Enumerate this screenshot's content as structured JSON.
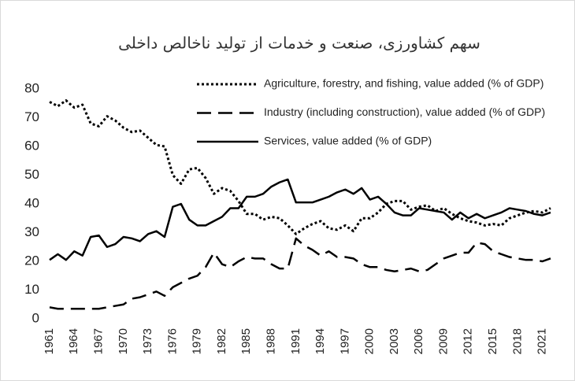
{
  "chart_data": {
    "type": "line",
    "title": "سهم کشاورزی، صنعت و خدمات از تولید ناخالص داخلی",
    "x": [
      1961,
      1962,
      1963,
      1964,
      1965,
      1966,
      1967,
      1968,
      1969,
      1970,
      1971,
      1972,
      1973,
      1974,
      1975,
      1976,
      1977,
      1978,
      1979,
      1980,
      1981,
      1982,
      1983,
      1984,
      1985,
      1986,
      1987,
      1988,
      1989,
      1990,
      1991,
      1992,
      1993,
      1994,
      1995,
      1996,
      1997,
      1998,
      1999,
      2000,
      2001,
      2002,
      2003,
      2004,
      2005,
      2006,
      2007,
      2008,
      2009,
      2010,
      2011,
      2012,
      2013,
      2014,
      2015,
      2016,
      2017,
      2018,
      2019,
      2020,
      2021,
      2022
    ],
    "xlim": [
      1961,
      2022
    ],
    "xticks": [
      1961,
      1964,
      1967,
      1970,
      1973,
      1976,
      1979,
      1982,
      1985,
      1988,
      1991,
      1994,
      1997,
      2000,
      2003,
      2006,
      2009,
      2012,
      2015,
      2018,
      2021
    ],
    "ylim": [
      0,
      80
    ],
    "yticks": [
      0,
      10,
      20,
      30,
      40,
      50,
      60,
      70,
      80
    ],
    "grid": false,
    "legend": "top-right",
    "series": [
      {
        "name": "Agriculture, forestry, and fishing, value added (% of GDP)",
        "color": "#000000",
        "style": "dotted",
        "values": [
          75.5,
          74,
          76,
          73.5,
          74.5,
          68,
          67,
          70.5,
          69,
          66.5,
          65,
          65.5,
          63,
          60.5,
          60,
          50,
          47,
          52,
          52.5,
          49,
          43.5,
          45.5,
          44.5,
          41,
          36.5,
          36.5,
          34.5,
          35.5,
          35,
          32.5,
          29.5,
          31.5,
          33,
          34,
          31.5,
          31,
          32.5,
          30.5,
          35,
          35,
          37,
          40,
          41,
          41,
          38,
          39,
          39.5,
          37.5,
          38.5,
          36.5,
          35,
          34,
          33.5,
          32.5,
          33,
          32.5,
          35,
          36,
          37,
          37.5,
          37,
          38.5
        ]
      },
      {
        "name": "Industry (including construction), value added (% of GDP)",
        "color": "#000000",
        "style": "dashed",
        "values": [
          4,
          3.5,
          3.5,
          3.5,
          3.5,
          3.5,
          3.5,
          4,
          4.5,
          5,
          7,
          7.5,
          8.5,
          9.5,
          8,
          11,
          12.5,
          14,
          15,
          18,
          23,
          19,
          18,
          20,
          21.5,
          21,
          21,
          19,
          17.5,
          17.5,
          28,
          25.5,
          24,
          22,
          23.5,
          21.5,
          21.5,
          21,
          19,
          18,
          18,
          17,
          16.5,
          17,
          17.5,
          16.5,
          17,
          19,
          21,
          22,
          23,
          23,
          26.5,
          26,
          23.5,
          22.5,
          21.5,
          21,
          20.5,
          20.5,
          20,
          21
        ]
      },
      {
        "name": "Services, value added (% of GDP)",
        "color": "#000000",
        "style": "solid",
        "values": [
          20.5,
          22.5,
          20.5,
          23.5,
          22,
          28.5,
          29,
          25,
          26,
          28.5,
          28,
          27,
          29.5,
          30.5,
          28.5,
          39,
          40,
          34.5,
          32.5,
          32.5,
          34,
          35.5,
          38.5,
          38.5,
          42.5,
          42.5,
          43.5,
          46,
          47.5,
          48.5,
          40.5,
          40.5,
          40.5,
          41.5,
          42.5,
          44,
          45,
          43.5,
          45.5,
          41.5,
          42.5,
          40,
          37,
          36,
          36,
          38.5,
          38,
          37.5,
          37,
          34.5,
          37,
          35,
          36.5,
          35,
          36,
          37,
          38.5,
          38,
          37.5,
          36.5,
          36,
          37
        ]
      }
    ]
  }
}
